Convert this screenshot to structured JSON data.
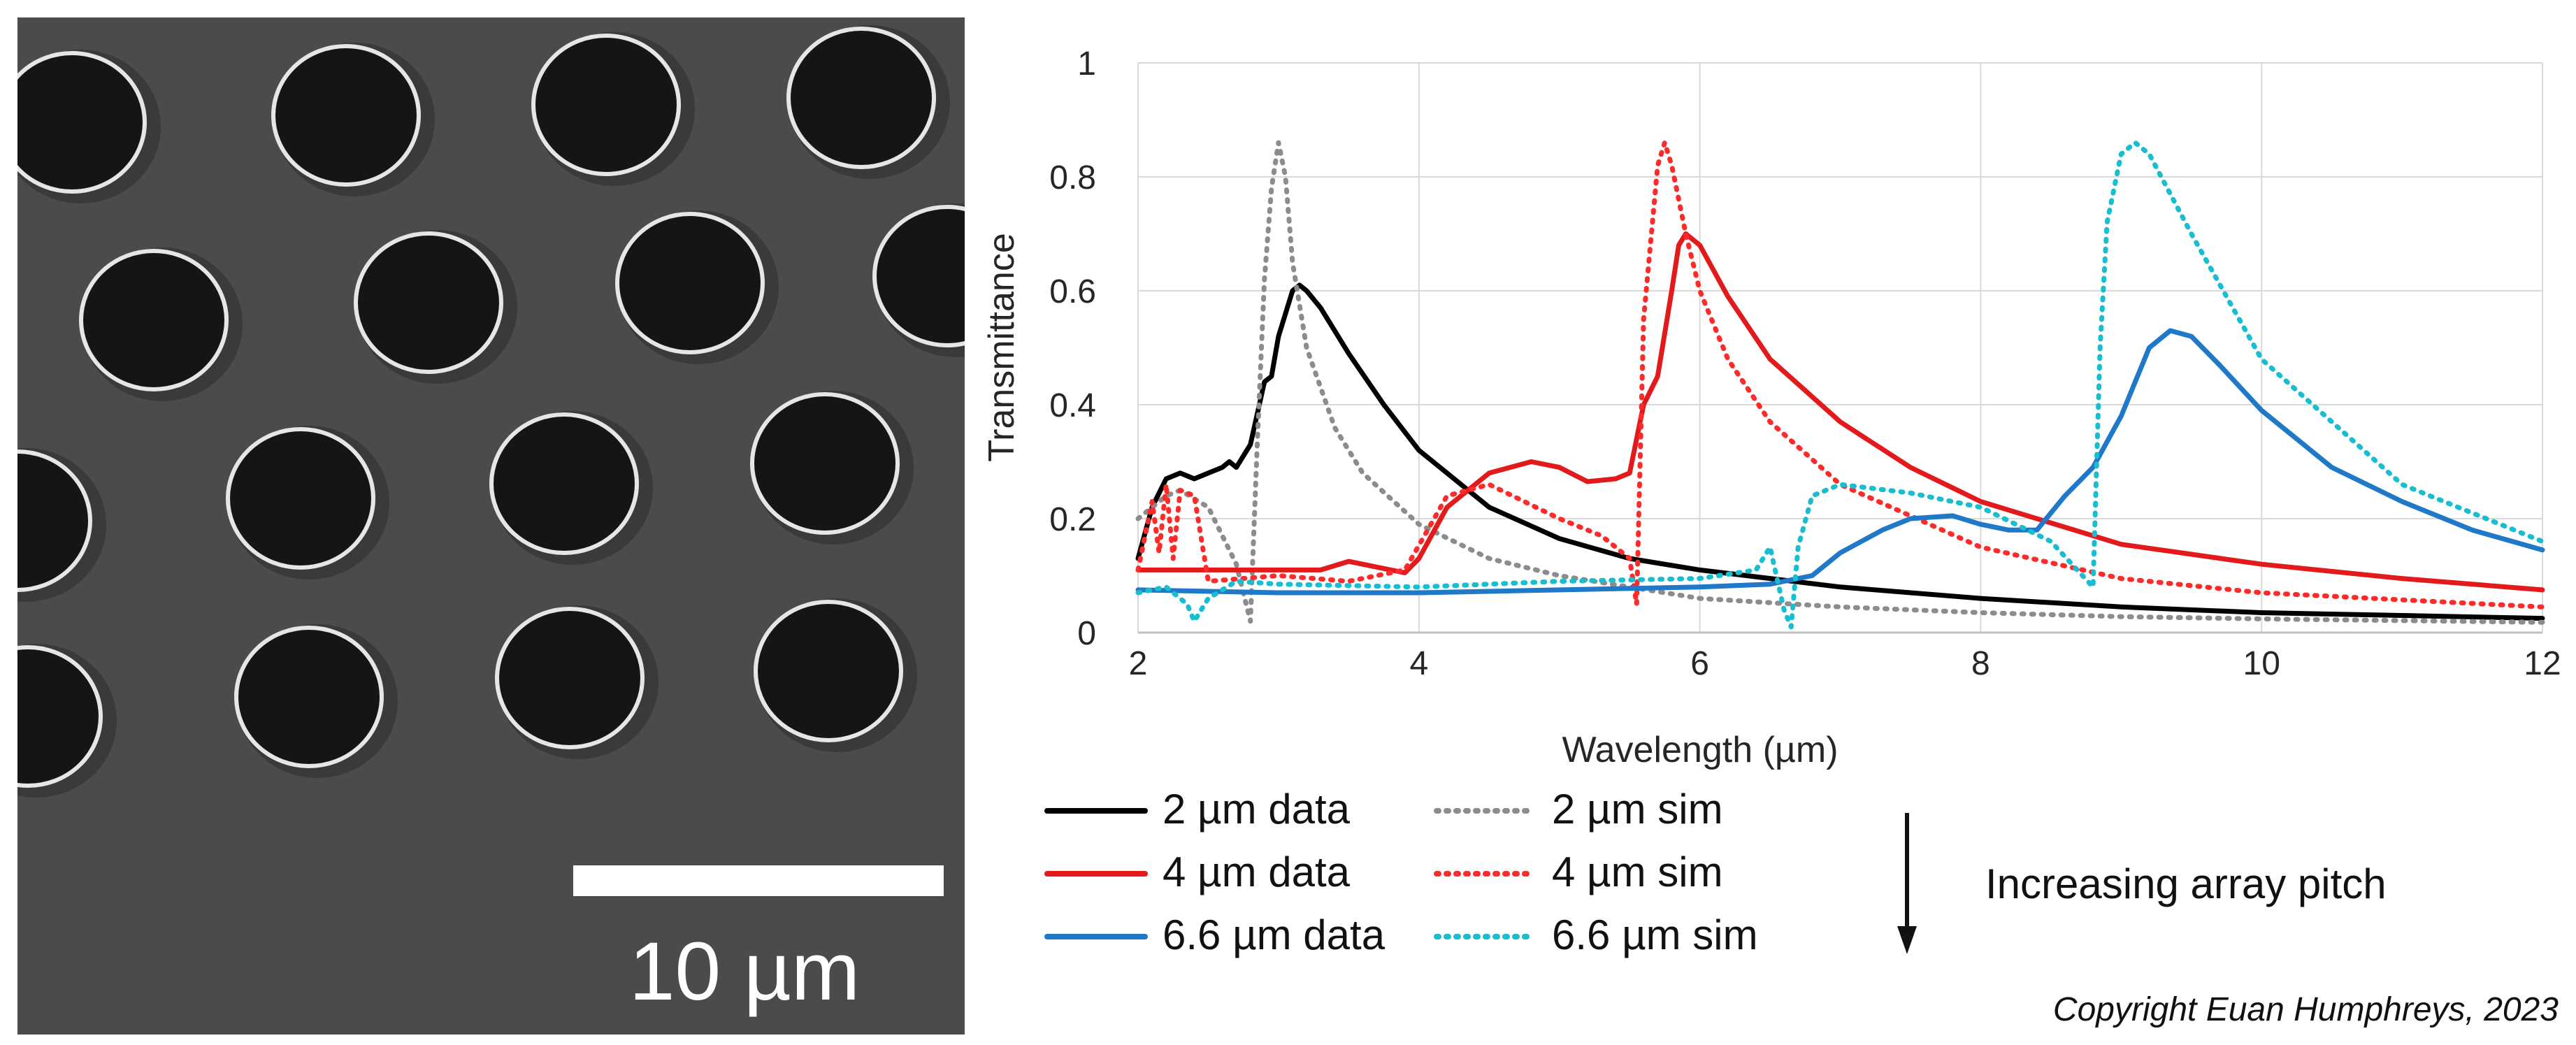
{
  "sem_image": {
    "scale_bar_label": "10 µm",
    "background_color": "#4b4b4b",
    "hole_color": "#151515",
    "rim_color": "#e6e6e6"
  },
  "chart_data": {
    "type": "line",
    "title": "",
    "xlabel": "Wavelength (µm)",
    "ylabel": "Transmittance",
    "xlim": [
      2,
      12
    ],
    "ylim": [
      0,
      1
    ],
    "xticks": [
      2,
      4,
      6,
      8,
      10,
      12
    ],
    "yticks": [
      0,
      0.2,
      0.4,
      0.6,
      0.8,
      1
    ],
    "ytick_labels": [
      "0",
      "0.2",
      "0.4",
      "0.6",
      "0.8",
      "1"
    ],
    "grid": true,
    "legend_position": "bottom",
    "series": [
      {
        "name": "2 µm data",
        "color": "#000000",
        "dash": "solid",
        "x": [
          2.0,
          2.1,
          2.2,
          2.3,
          2.4,
          2.5,
          2.6,
          2.65,
          2.7,
          2.8,
          2.9,
          2.95,
          3.0,
          3.1,
          3.15,
          3.2,
          3.3,
          3.5,
          3.75,
          4.0,
          4.5,
          5.0,
          5.5,
          6.0,
          7.0,
          8.0,
          9.0,
          10.0,
          11.0,
          12.0
        ],
        "y": [
          0.13,
          0.22,
          0.27,
          0.28,
          0.27,
          0.28,
          0.29,
          0.3,
          0.29,
          0.33,
          0.44,
          0.45,
          0.52,
          0.6,
          0.61,
          0.6,
          0.57,
          0.49,
          0.4,
          0.32,
          0.22,
          0.165,
          0.13,
          0.11,
          0.08,
          0.06,
          0.045,
          0.035,
          0.03,
          0.025
        ]
      },
      {
        "name": "2 µm sim",
        "color": "#8c8c8c",
        "dash": "dotted",
        "x": [
          2.0,
          2.2,
          2.3,
          2.5,
          2.7,
          2.8,
          2.85,
          2.9,
          2.95,
          3.0,
          3.05,
          3.1,
          3.2,
          3.4,
          3.6,
          4.0,
          4.5,
          5.0,
          6.0,
          7.0,
          8.0,
          9.0,
          10.0,
          12.0
        ],
        "y": [
          0.2,
          0.24,
          0.25,
          0.22,
          0.12,
          0.02,
          0.34,
          0.62,
          0.78,
          0.86,
          0.8,
          0.65,
          0.5,
          0.36,
          0.28,
          0.19,
          0.13,
          0.1,
          0.06,
          0.045,
          0.035,
          0.028,
          0.024,
          0.018
        ]
      },
      {
        "name": "4 µm data",
        "color": "#e31a1c",
        "dash": "solid",
        "x": [
          2.0,
          2.5,
          3.0,
          3.3,
          3.5,
          3.7,
          3.9,
          4.0,
          4.2,
          4.5,
          4.8,
          5.0,
          5.2,
          5.4,
          5.5,
          5.6,
          5.7,
          5.8,
          5.85,
          5.9,
          6.0,
          6.2,
          6.5,
          7.0,
          7.5,
          8.0,
          9.0,
          10.0,
          11.0,
          12.0
        ],
        "y": [
          0.11,
          0.11,
          0.11,
          0.11,
          0.125,
          0.115,
          0.105,
          0.13,
          0.22,
          0.28,
          0.3,
          0.29,
          0.265,
          0.27,
          0.28,
          0.4,
          0.45,
          0.6,
          0.68,
          0.7,
          0.68,
          0.59,
          0.48,
          0.37,
          0.29,
          0.23,
          0.155,
          0.12,
          0.095,
          0.075
        ]
      },
      {
        "name": "4 µm sim",
        "color": "#ff2a2a",
        "dash": "dotted",
        "x": [
          2.0,
          2.1,
          2.15,
          2.2,
          2.25,
          2.3,
          2.4,
          2.5,
          3.0,
          3.5,
          3.9,
          4.2,
          4.5,
          5.0,
          5.3,
          5.5,
          5.55,
          5.6,
          5.7,
          5.75,
          5.8,
          5.9,
          6.0,
          6.2,
          6.5,
          7.0,
          8.0,
          9.0,
          10.0,
          12.0
        ],
        "y": [
          0.11,
          0.23,
          0.14,
          0.26,
          0.13,
          0.25,
          0.24,
          0.09,
          0.1,
          0.09,
          0.11,
          0.24,
          0.26,
          0.2,
          0.17,
          0.13,
          0.05,
          0.55,
          0.82,
          0.86,
          0.82,
          0.7,
          0.6,
          0.48,
          0.37,
          0.26,
          0.15,
          0.095,
          0.07,
          0.045
        ]
      },
      {
        "name": "6.6 µm data",
        "color": "#1f78c8",
        "dash": "solid",
        "x": [
          2.0,
          3.0,
          4.0,
          5.0,
          6.0,
          6.5,
          6.8,
          7.0,
          7.3,
          7.5,
          7.8,
          8.0,
          8.2,
          8.4,
          8.6,
          8.8,
          9.0,
          9.2,
          9.35,
          9.5,
          9.7,
          10.0,
          10.5,
          11.0,
          11.5,
          12.0
        ],
        "y": [
          0.075,
          0.07,
          0.07,
          0.075,
          0.08,
          0.085,
          0.1,
          0.14,
          0.18,
          0.2,
          0.205,
          0.19,
          0.18,
          0.18,
          0.24,
          0.29,
          0.38,
          0.5,
          0.53,
          0.52,
          0.47,
          0.39,
          0.29,
          0.23,
          0.18,
          0.145
        ]
      },
      {
        "name": "6.6 µm sim",
        "color": "#17becf",
        "dash": "dotted",
        "x": [
          2.0,
          2.2,
          2.35,
          2.4,
          2.5,
          2.7,
          3.0,
          4.0,
          5.0,
          6.0,
          6.4,
          6.5,
          6.6,
          6.65,
          6.7,
          6.8,
          7.0,
          7.5,
          8.0,
          8.5,
          8.8,
          8.85,
          8.9,
          9.0,
          9.1,
          9.2,
          9.5,
          10.0,
          11.0,
          12.0
        ],
        "y": [
          0.07,
          0.08,
          0.05,
          0.02,
          0.06,
          0.09,
          0.085,
          0.08,
          0.09,
          0.095,
          0.11,
          0.15,
          0.04,
          0.01,
          0.15,
          0.24,
          0.26,
          0.245,
          0.22,
          0.16,
          0.08,
          0.5,
          0.72,
          0.84,
          0.86,
          0.84,
          0.7,
          0.48,
          0.26,
          0.16
        ]
      }
    ],
    "legend": {
      "entries": [
        "2 µm data",
        "2 µm sim",
        "4 µm data",
        "4 µm sim",
        "6.6 µm data",
        "6.6 µm sim"
      ],
      "note": "Increasing array pitch"
    },
    "copyright": "Copyright Euan Humphreys, 2023"
  }
}
